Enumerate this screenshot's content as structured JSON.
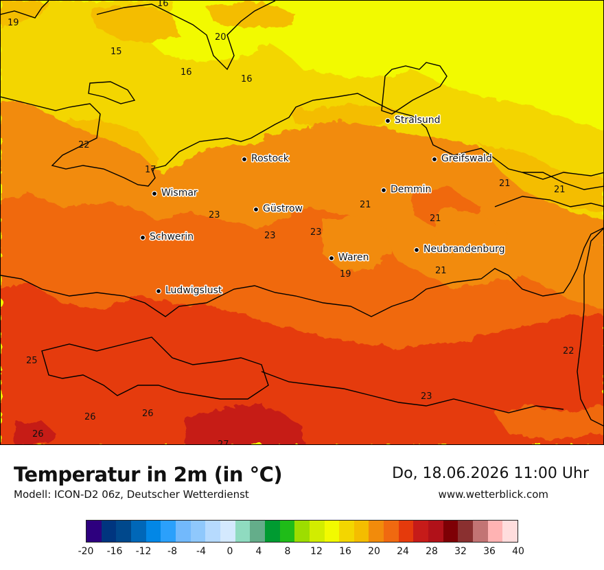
{
  "title": "Temperatur in 2m (in °C)",
  "model": "Modell: ICON-D2 06z, Deutscher Wetterdienst",
  "datetime": "Do, 18.06.2026 11:00 Uhr",
  "website": "www.wetterblick.com",
  "cities": [
    {
      "name": "Stralsund"
    },
    {
      "name": "Rostock"
    },
    {
      "name": "Greifswald"
    },
    {
      "name": "Wismar"
    },
    {
      "name": "Demmin"
    },
    {
      "name": "Güstrow"
    },
    {
      "name": "Schwerin"
    },
    {
      "name": "Neubrandenburg"
    },
    {
      "name": "Waren"
    },
    {
      "name": "Ludwigslust"
    }
  ],
  "isolines": [
    "16",
    "19",
    "20",
    "15",
    "16",
    "16",
    "22",
    "17",
    "23",
    "23",
    "23",
    "21",
    "21",
    "21",
    "21",
    "21",
    "19",
    "22",
    "25",
    "23",
    "26",
    "26",
    "26",
    "27"
  ],
  "legend": {
    "colors": [
      "#2d007e",
      "#00357f",
      "#00488c",
      "#0067b8",
      "#0287e6",
      "#2ba0fb",
      "#72b9fc",
      "#8fc8fc",
      "#b6dafe",
      "#d4e9fe",
      "#8fdbc0",
      "#64ad8a",
      "#009b31",
      "#1fbc18",
      "#9ddd00",
      "#d2ed00",
      "#f2fa00",
      "#f3d600",
      "#f4bd00",
      "#f28b0b",
      "#f06910",
      "#e53a0c",
      "#c61b19",
      "#b11119",
      "#7e0005",
      "#8a3030",
      "#c27474",
      "#ffb3b3",
      "#ffdddd"
    ],
    "ticks": [
      "-20",
      "-16",
      "-12",
      "-8",
      "-4",
      "0",
      "4",
      "8",
      "12",
      "16",
      "20",
      "24",
      "28",
      "32",
      "36",
      "40"
    ]
  }
}
